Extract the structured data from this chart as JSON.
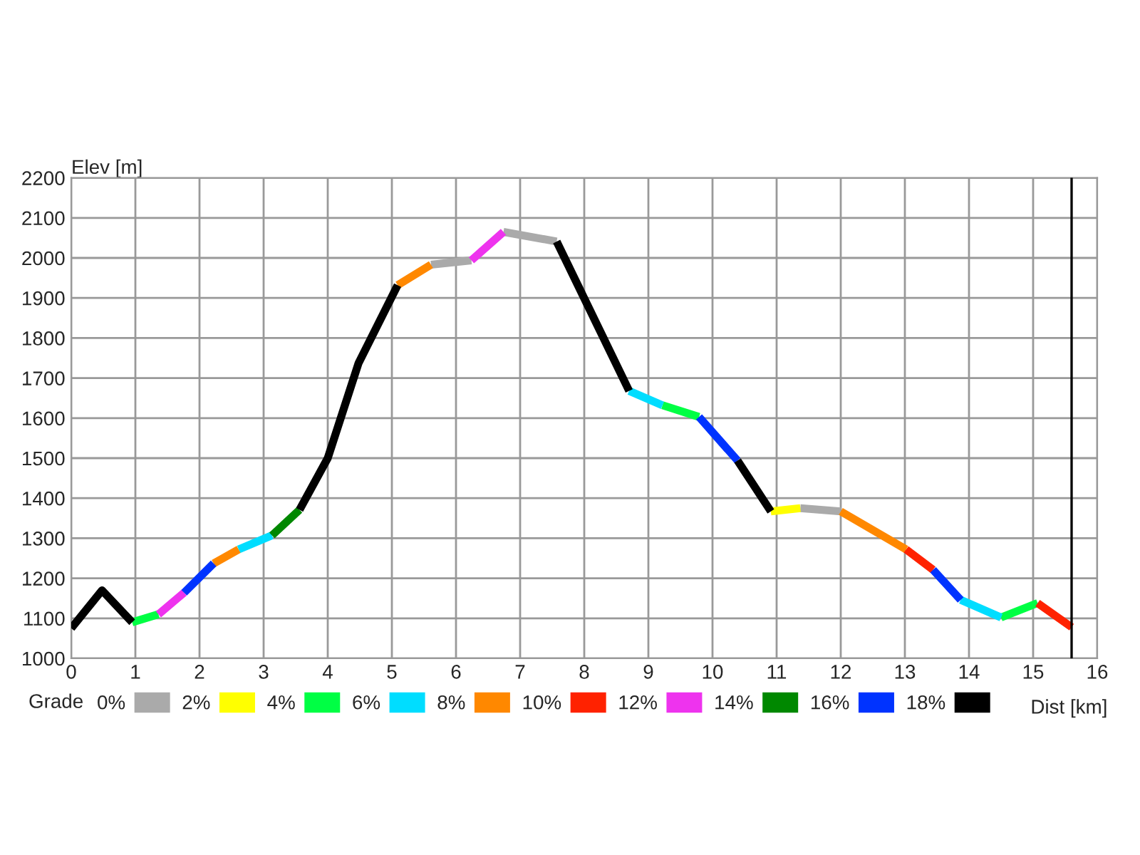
{
  "chart_data": {
    "type": "line",
    "xlabel": "Dist [km]",
    "ylabel": "Elev [m]",
    "legend_title": "Grade",
    "xlim": [
      0,
      16
    ],
    "xticks": [
      0,
      1,
      2,
      3,
      4,
      5,
      6,
      7,
      8,
      9,
      10,
      11,
      12,
      13,
      14,
      15,
      16
    ],
    "ylim": [
      1000,
      2200
    ],
    "yticks": [
      1000,
      1100,
      1200,
      1300,
      1400,
      1500,
      1600,
      1700,
      1800,
      1900,
      2000,
      2100,
      2200
    ],
    "grid": true,
    "legend": "bottom",
    "marker": "none",
    "line_style": "solid",
    "ref_lines": [
      {
        "axis": "x",
        "value": 15.6,
        "label": null,
        "color": "#000000"
      }
    ],
    "series": [
      {
        "name": "0%",
        "color": "#aaaaaa",
        "x": [
          5.61,
          6.24,
          6.5,
          6.74,
          7.57,
          10,
          11.37,
          12.0
        ],
        "values": [
          1983,
          1994,
          null,
          2065,
          2041,
          null,
          1375,
          1367
        ]
      },
      {
        "name": "2%",
        "color": "#ffff00",
        "x": [
          10.91,
          11.37
        ],
        "values": [
          1367,
          1375
        ]
      },
      {
        "name": "4%",
        "color": "#00ff44",
        "x": [
          0.95,
          1.36,
          5,
          9.22,
          9.79,
          12,
          14.5,
          15.07
        ],
        "values": [
          1090,
          1110,
          null,
          1632,
          1603,
          null,
          1102,
          1138
        ]
      },
      {
        "name": "6%",
        "color": "#00ddff",
        "x": [
          2.61,
          3.13,
          5,
          8.7,
          9.22,
          12,
          13.87,
          14.5
        ],
        "values": [
          1272,
          1307,
          null,
          1668,
          1632,
          null,
          1146,
          1102
        ]
      },
      {
        "name": "8%",
        "color": "#ff8800",
        "x": [
          2.22,
          2.61,
          4,
          5.09,
          5.61,
          9,
          12.0,
          13.02
        ],
        "values": [
          1237,
          1272,
          null,
          1932,
          1983,
          null,
          1367,
          1272
        ]
      },
      {
        "name": "10%",
        "color": "#ff2200",
        "x": [
          13.02,
          13.44,
          14,
          15.07,
          15.6
        ],
        "values": [
          1272,
          1221,
          null,
          1138,
          1078
        ]
      },
      {
        "name": "12%",
        "color": "#ee33ee",
        "x": [
          1.36,
          1.76,
          4,
          6.24,
          6.74
        ],
        "values": [
          1110,
          1164,
          null,
          1994,
          2065
        ]
      },
      {
        "name": "14%",
        "color": "#008800",
        "x": [
          3.13,
          3.56
        ],
        "values": [
          1307,
          1371
        ]
      },
      {
        "name": "16%",
        "color": "#0033ff",
        "x": [
          1.76,
          2.22,
          6,
          9.79,
          10.39,
          12,
          13.44,
          13.87
        ],
        "values": [
          1164,
          1237,
          null,
          1603,
          1494,
          null,
          1221,
          1146
        ]
      },
      {
        "name": "18%",
        "color": "#000000",
        "x": [
          0,
          0.48,
          0.95,
          2,
          3.56,
          4.0,
          4.48,
          5.09,
          6,
          7.57,
          8.7,
          9.5,
          10.39,
          10.91
        ],
        "values": [
          1075,
          1170,
          1090,
          null,
          1371,
          1500,
          1737,
          1932,
          null,
          2041,
          1668,
          null,
          1494,
          1367
        ]
      }
    ]
  }
}
